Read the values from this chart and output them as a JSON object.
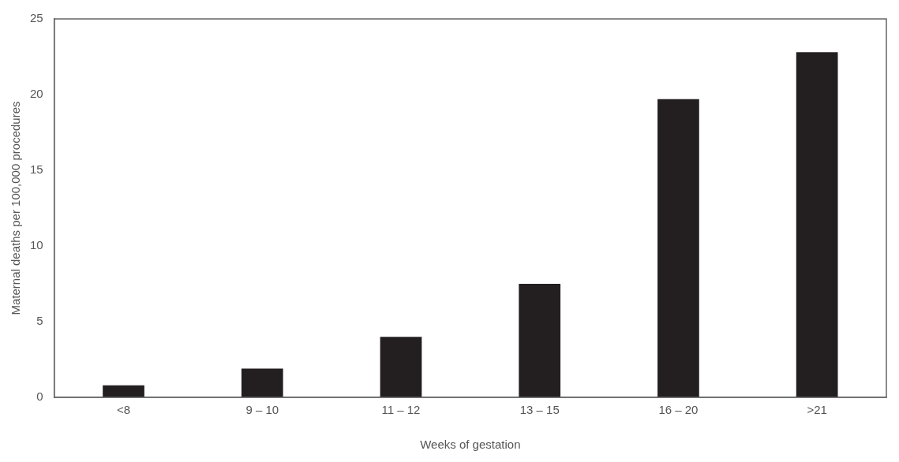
{
  "chart_data": {
    "type": "bar",
    "xlabel": "Weeks of gestation",
    "ylabel": "Maternal deaths per 100,000 procedures",
    "categories": [
      "<8",
      "9 – 10",
      "11 – 12",
      "13 – 15",
      "16 – 20",
      ">21"
    ],
    "values": [
      0.8,
      1.9,
      4.0,
      7.5,
      19.7,
      22.8
    ],
    "color": "#231f20",
    "ylim": [
      0,
      25
    ],
    "yticks": [
      0,
      5,
      10,
      15,
      20,
      25
    ],
    "grid": false
  }
}
